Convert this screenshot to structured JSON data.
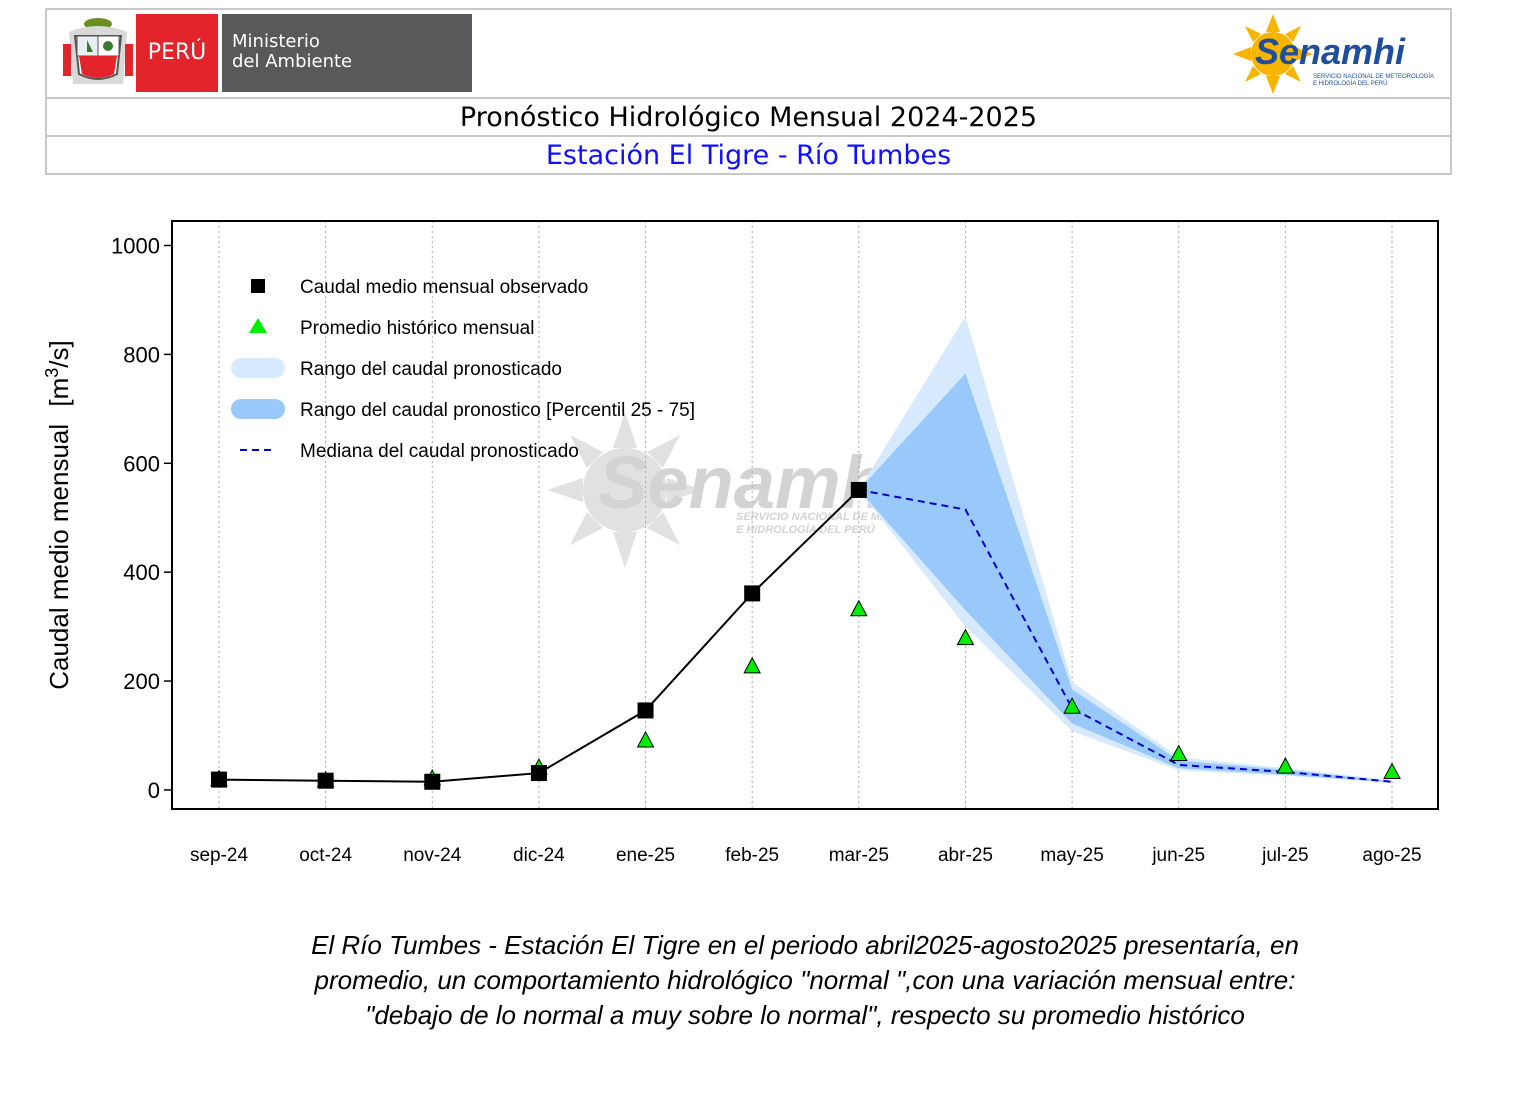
{
  "header": {
    "peru_label": "PERÚ",
    "ministry_line1": "Ministerio",
    "ministry_line2": "del Ambiente",
    "brand": "Senamhi",
    "brand_sub1": "SERVICIO NACIONAL DE METEOROLOGÍA",
    "brand_sub2": "E HIDROLOGÍA DEL PERÚ",
    "title": "Pronóstico Hidrológico Mensual 2024-2025",
    "subtitle": "Estación El Tigre - Río Tumbes",
    "colors": {
      "peru_red": "#e3252b",
      "ministry_gray": "#59595b",
      "subtitle_blue": "#1010ff",
      "sun": "#f7b500",
      "brand_blue": "#1f4e9c"
    }
  },
  "chart_data": {
    "type": "line",
    "ylabel": "Caudal medio mensual",
    "yunit": "[m³/s]",
    "ylim": [
      -35,
      1045
    ],
    "yticks": [
      0,
      200,
      400,
      600,
      800,
      1000
    ],
    "categories": [
      "sep-24",
      "oct-24",
      "nov-24",
      "dic-24",
      "ene-25",
      "feb-25",
      "mar-25",
      "abr-25",
      "may-25",
      "jun-25",
      "jul-25",
      "ago-25"
    ],
    "grid": "vertical dotted",
    "legend_position": "top-left",
    "legend": [
      {
        "label": "Caudal medio mensual observado",
        "symbol": "square",
        "color": "#000000"
      },
      {
        "label": "Promedio histórico mensual",
        "symbol": "triangle",
        "color": "#00ee00"
      },
      {
        "label": "Rango del caudal pronosticado",
        "symbol": "band",
        "color": "#d6e9fd"
      },
      {
        "label": "Rango del caudal pronostico [Percentil 25 - 75]",
        "symbol": "band",
        "color": "#99c8fb"
      },
      {
        "label": "Mediana del caudal pronosticado",
        "symbol": "dashed",
        "color": "#0000cc"
      }
    ],
    "series": [
      {
        "name": "Caudal medio mensual observado",
        "x": [
          "sep-24",
          "oct-24",
          "nov-24",
          "dic-24",
          "ene-25",
          "feb-25",
          "mar-25"
        ],
        "values": [
          19,
          17,
          15,
          31,
          146,
          361,
          551
        ]
      },
      {
        "name": "Promedio histórico mensual",
        "x": [
          "sep-24",
          "oct-24",
          "nov-24",
          "dic-24",
          "ene-25",
          "feb-25",
          "mar-25",
          "abr-25",
          "may-25",
          "jun-25",
          "jul-25",
          "ago-25"
        ],
        "values": [
          19,
          17,
          20,
          40,
          90,
          226,
          331,
          278,
          152,
          65,
          42,
          32
        ]
      },
      {
        "name": "Mediana del caudal pronosticado",
        "x": [
          "mar-25",
          "abr-25",
          "may-25",
          "jun-25",
          "jul-25",
          "ago-25"
        ],
        "values": [
          551,
          515,
          150,
          46,
          33,
          15
        ]
      }
    ],
    "range_full": {
      "x": [
        "mar-25",
        "abr-25",
        "may-25",
        "jun-25",
        "jul-25",
        "ago-25"
      ],
      "low": [
        551,
        300,
        108,
        36,
        26,
        13
      ],
      "high": [
        551,
        870,
        198,
        60,
        40,
        18
      ]
    },
    "range_p25_p75": {
      "x": [
        "mar-25",
        "abr-25",
        "may-25",
        "jun-25",
        "jul-25",
        "ago-25"
      ],
      "low": [
        551,
        330,
        122,
        40,
        28,
        14
      ],
      "high": [
        551,
        765,
        185,
        54,
        37,
        16
      ]
    }
  },
  "watermark": {
    "name": "Senamhi",
    "sub1": "SERVICIO NACIONAL DE METEOROLOGÍA",
    "sub2": "E HIDROLOGÍA DEL PERÚ"
  },
  "caption": {
    "line1": "El Río Tumbes - Estación El Tigre en el periodo abril2025-agosto2025 presentaría, en",
    "line2": "promedio, un comportamiento hidrológico \"normal \",con una variación mensual entre:",
    "line3": "\"debajo de lo normal a muy sobre lo normal\", respecto su promedio histórico"
  }
}
